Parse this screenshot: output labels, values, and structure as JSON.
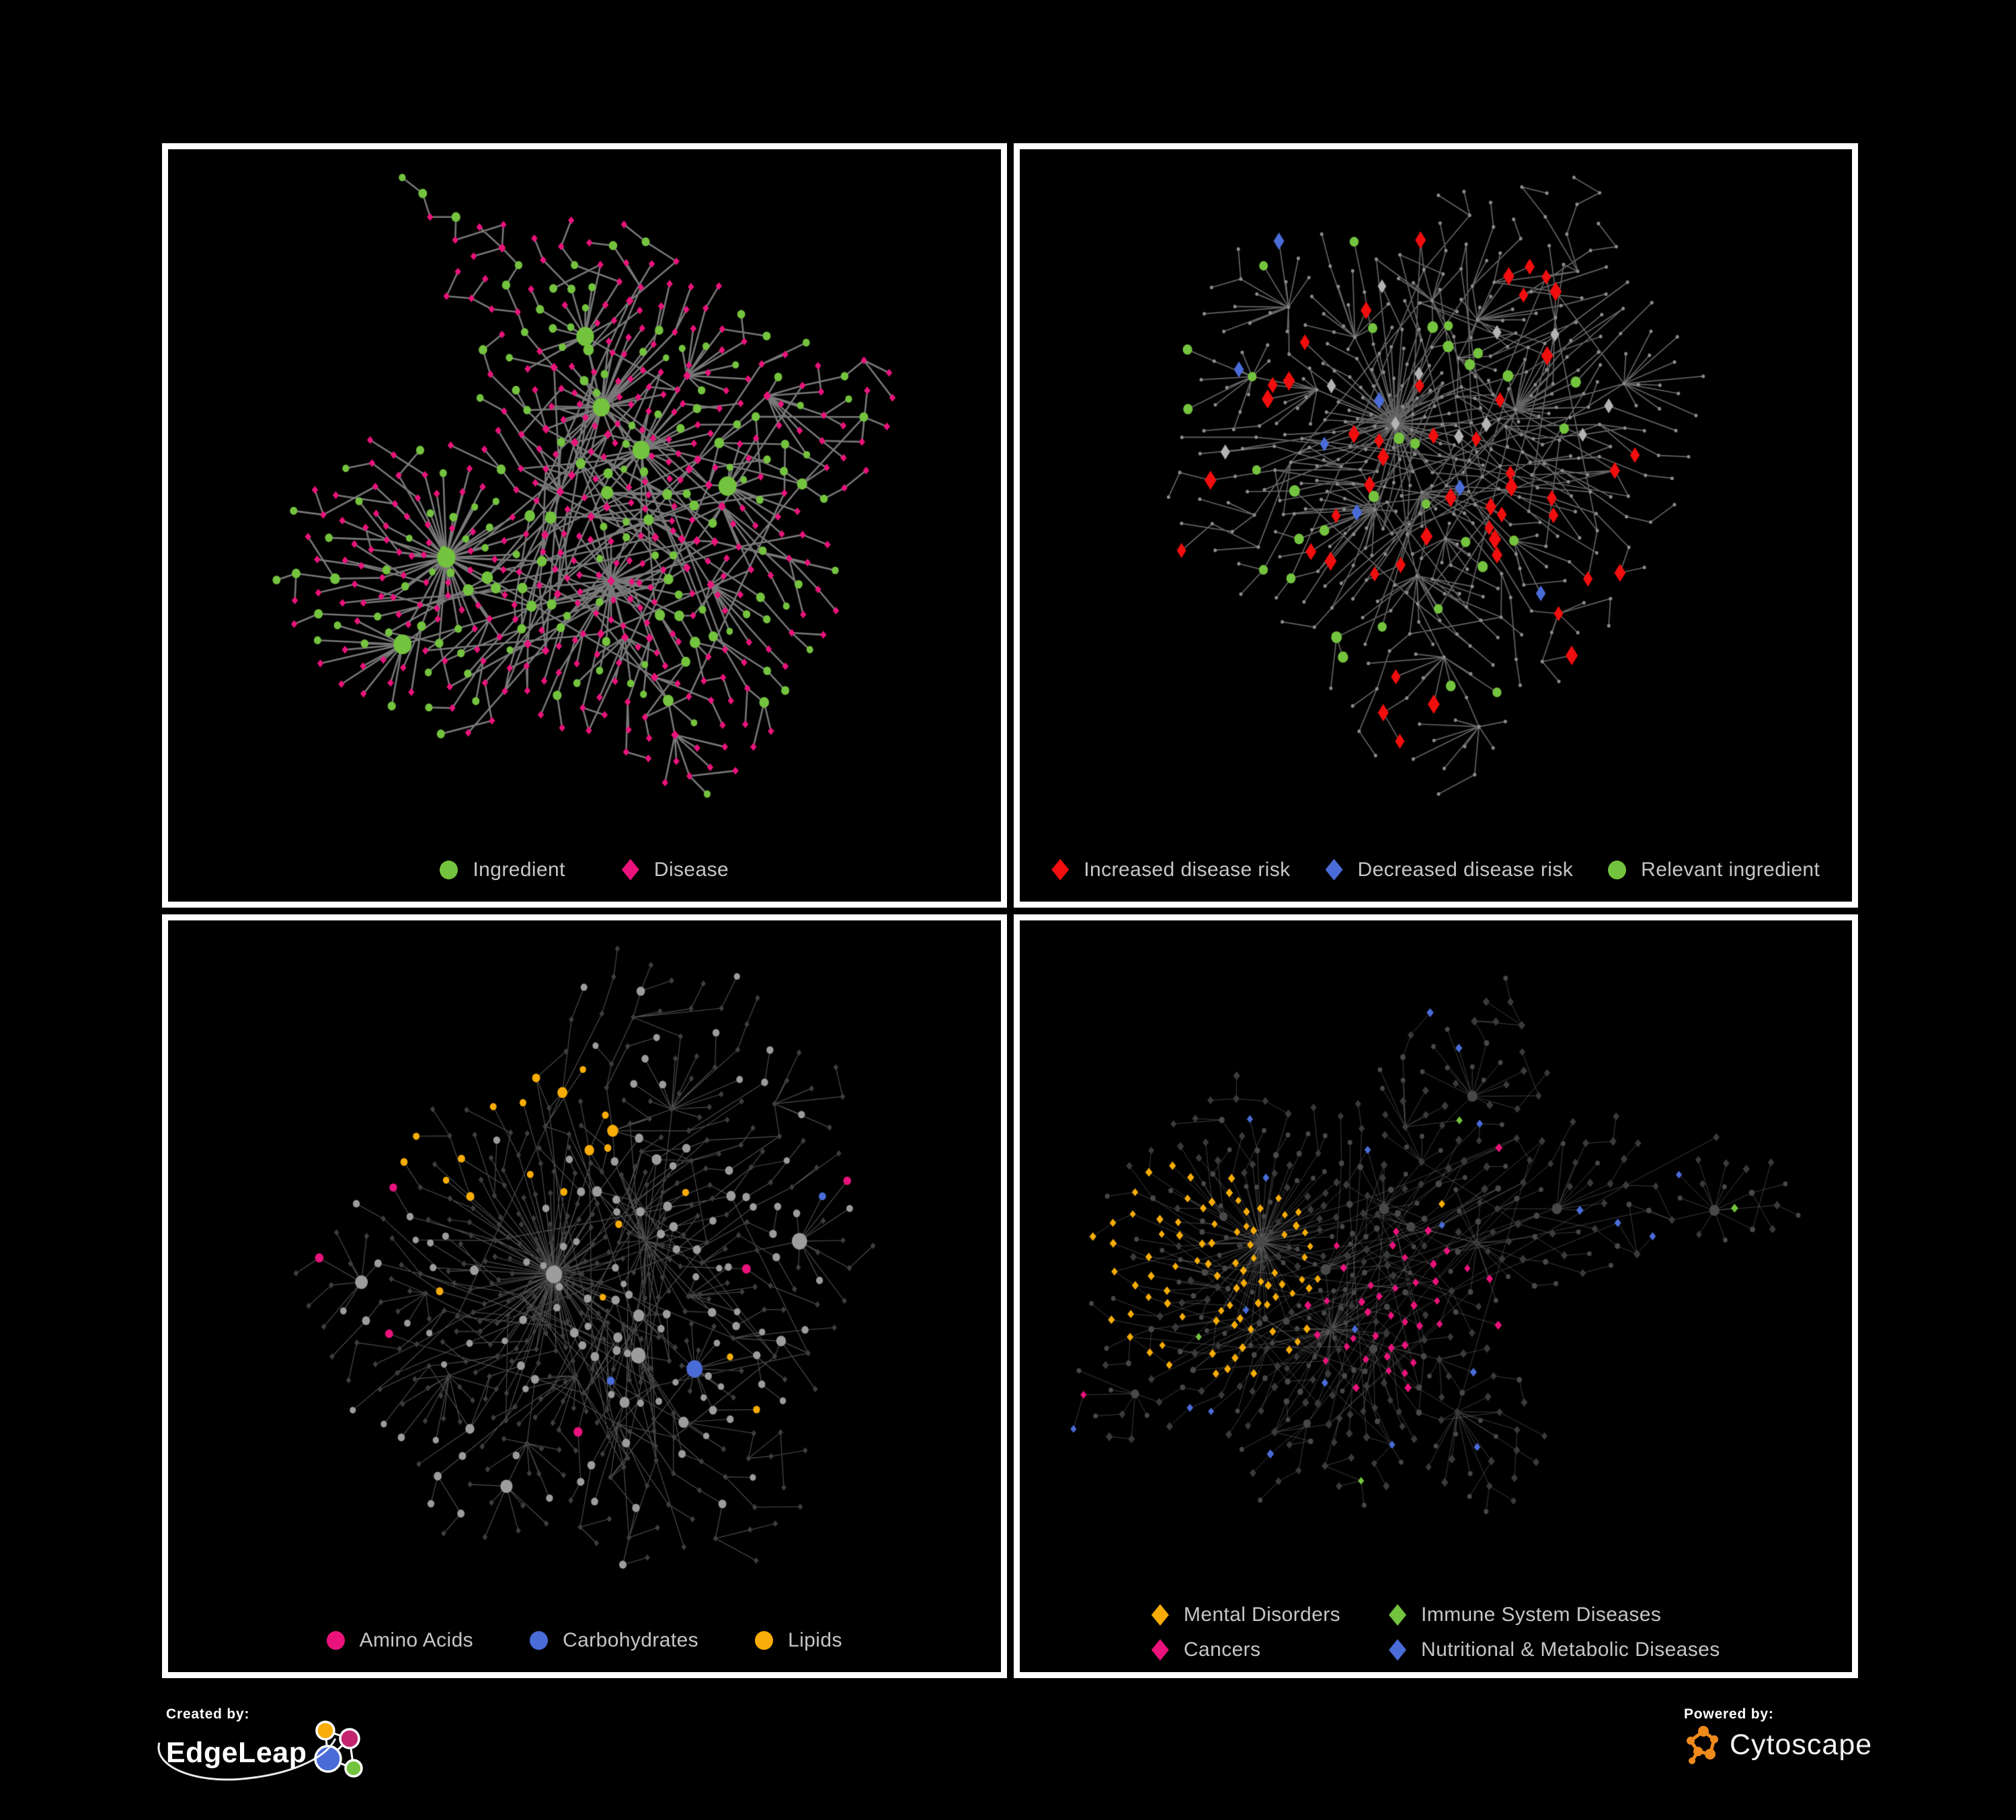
{
  "palette": {
    "green": "#74c33e",
    "pink": "#e9137b",
    "red": "#f10e0e",
    "blue": "#4a6cd8",
    "amber": "#f7ac07",
    "silver": "#b3b3b3",
    "gray_node": "#9c9c9c",
    "dark_diamond": "#3e3e3e",
    "dim_diamond": "#3a3a3a",
    "dark_circle": "#484848",
    "dot_gray": "#8b8b8b",
    "legend_text": "#c6c6c6",
    "panel_border": "#ffffff",
    "background": "#000000",
    "cytoscape_orange": "#ef8a1c"
  },
  "panels": [
    {
      "name": "ingredient-disease",
      "columns": 1,
      "legend": [
        {
          "label": "Ingredient",
          "shape": "circle",
          "color": "green"
        },
        {
          "label": "Disease",
          "shape": "diamond",
          "color": "pink"
        }
      ],
      "network": {
        "seed": 20,
        "node_count": 540,
        "style": "p1"
      }
    },
    {
      "name": "disease-risk",
      "columns": 1,
      "legend": [
        {
          "label": "Increased disease risk",
          "shape": "diamond",
          "color": "red"
        },
        {
          "label": "Decreased disease risk",
          "shape": "diamond",
          "color": "blue"
        },
        {
          "label": "Relevant ingredient",
          "shape": "circle",
          "color": "green"
        }
      ],
      "network": {
        "seed": 77,
        "node_count": 540,
        "style": "p2"
      }
    },
    {
      "name": "nutrient-categories",
      "columns": 1,
      "legend": [
        {
          "label": "Amino Acids",
          "shape": "circle",
          "color": "pink"
        },
        {
          "label": "Carbohydrates",
          "shape": "circle",
          "color": "blue"
        },
        {
          "label": "Lipids",
          "shape": "circle",
          "color": "amber"
        }
      ],
      "network": {
        "seed": 41,
        "node_count": 540,
        "style": "p3"
      }
    },
    {
      "name": "disease-categories",
      "columns": 2,
      "legend": [
        {
          "label": "Mental Disorders",
          "shape": "diamond",
          "color": "amber"
        },
        {
          "label": "Immune System Diseases",
          "shape": "diamond",
          "color": "green"
        },
        {
          "label": "Cancers",
          "shape": "diamond",
          "color": "pink"
        },
        {
          "label": "Nutritional & Metabolic Diseases",
          "shape": "diamond",
          "color": "blue"
        }
      ],
      "network": {
        "seed": 63,
        "node_count": 560,
        "style": "p4"
      }
    }
  ],
  "footer": {
    "created_by_label": "Created by:",
    "created_by_name": "EdgeLeap",
    "powered_by_label": "Powered by:",
    "powered_by_name": "Cytoscape"
  }
}
